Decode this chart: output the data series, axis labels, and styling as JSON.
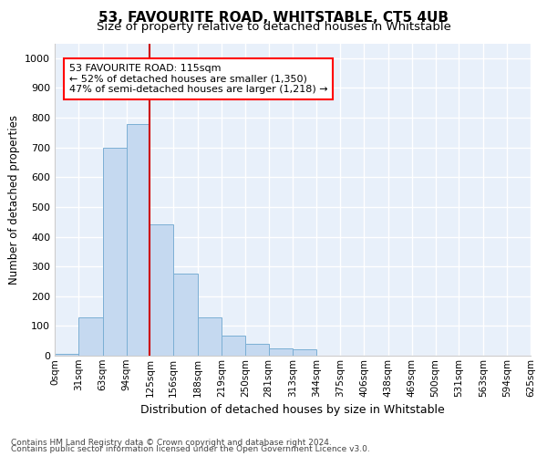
{
  "title": "53, FAVOURITE ROAD, WHITSTABLE, CT5 4UB",
  "subtitle": "Size of property relative to detached houses in Whitstable",
  "xlabel": "Distribution of detached houses by size in Whitstable",
  "ylabel": "Number of detached properties",
  "footnote1": "Contains HM Land Registry data © Crown copyright and database right 2024.",
  "footnote2": "Contains public sector information licensed under the Open Government Licence v3.0.",
  "bar_color": "#c5d9f0",
  "bar_edge_color": "#7bafd4",
  "background_color": "#e8f0fa",
  "grid_color": "#ffffff",
  "annotation_text": "53 FAVOURITE ROAD: 115sqm\n← 52% of detached houses are smaller (1,350)\n47% of semi-detached houses are larger (1,218) →",
  "vline_x": 125,
  "vline_color": "#cc0000",
  "bins": [
    0,
    31,
    63,
    94,
    125,
    156,
    188,
    219,
    250,
    281,
    313,
    344,
    375,
    406,
    438,
    469,
    500,
    531,
    563,
    594,
    625
  ],
  "bin_labels": [
    "0sqm",
    "31sqm",
    "63sqm",
    "94sqm",
    "125sqm",
    "156sqm",
    "188sqm",
    "219sqm",
    "250sqm",
    "281sqm",
    "313sqm",
    "344sqm",
    "375sqm",
    "406sqm",
    "438sqm",
    "469sqm",
    "500sqm",
    "531sqm",
    "563sqm",
    "594sqm",
    "625sqm"
  ],
  "counts": [
    5,
    130,
    700,
    778,
    440,
    275,
    130,
    68,
    40,
    25,
    20,
    0,
    0,
    0,
    0,
    0,
    0,
    0,
    0,
    0
  ],
  "ylim": [
    0,
    1050
  ],
  "yticks": [
    0,
    100,
    200,
    300,
    400,
    500,
    600,
    700,
    800,
    900,
    1000
  ],
  "title_fontsize": 11,
  "subtitle_fontsize": 9.5,
  "ylabel_fontsize": 8.5,
  "xlabel_fontsize": 9,
  "tick_fontsize": 8,
  "xtick_fontsize": 7.5,
  "annotation_fontsize": 8,
  "footnote_fontsize": 6.5
}
